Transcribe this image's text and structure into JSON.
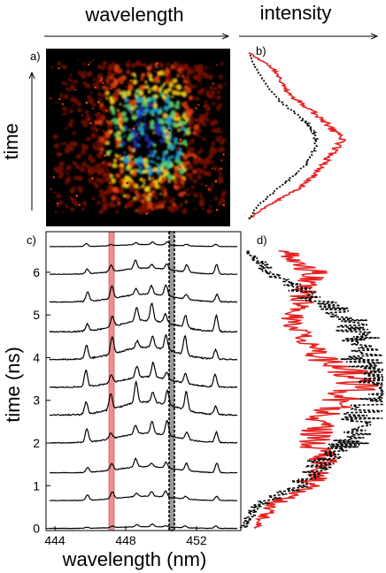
{
  "figure": {
    "top_axis_left_label": "wavelength",
    "top_axis_right_label": "intensity",
    "left_axis_label": "time",
    "panel_labels": [
      "a)",
      "b)",
      "c)",
      "d)"
    ]
  },
  "colors": {
    "red_trace": "#e5211f",
    "black_trace": "#000000",
    "highlight_band": "#f08c8c",
    "image_background": "#000000"
  },
  "chart_data": [
    {
      "panel": "a",
      "type": "heatmap",
      "title": "",
      "xlabel": "wavelength",
      "ylabel": "time",
      "colormap": [
        "#000000",
        "#7a1004",
        "#e8400a",
        "#ffd21a",
        "#5ccf6a",
        "#21a8d6",
        "#1e2fb8"
      ],
      "description_values": "bright spectral streaks concentrated in the middle, faint speckle at edges"
    },
    {
      "panel": "b",
      "type": "line",
      "xlabel": "intensity",
      "ylabel": "time",
      "series": [
        {
          "style": "solid",
          "color": "#e5211f",
          "y": [
            0,
            1,
            2,
            3,
            4,
            5,
            6,
            7,
            8,
            9,
            10,
            11,
            12,
            13,
            14,
            15,
            16,
            17,
            18,
            19,
            20,
            21,
            22,
            23,
            24,
            25,
            26,
            27,
            28,
            29,
            30
          ],
          "values": [
            0.05,
            0.12,
            0.2,
            0.3,
            0.4,
            0.5,
            0.6,
            0.66,
            0.72,
            0.76,
            0.8,
            0.86,
            0.9,
            0.95,
            1.0,
            0.97,
            0.92,
            0.86,
            0.8,
            0.73,
            0.66,
            0.58,
            0.5,
            0.44,
            0.4,
            0.37,
            0.35,
            0.3,
            0.24,
            0.14,
            0.05
          ]
        },
        {
          "style": "dashed",
          "color": "#000000",
          "y": [
            0,
            1,
            2,
            3,
            4,
            5,
            6,
            7,
            8,
            9,
            10,
            11,
            12,
            13,
            14,
            15,
            16,
            17,
            18,
            19,
            20,
            21,
            22,
            23,
            24,
            25,
            26,
            27,
            28,
            29,
            30
          ],
          "values": [
            0.05,
            0.08,
            0.12,
            0.17,
            0.24,
            0.31,
            0.38,
            0.45,
            0.52,
            0.58,
            0.63,
            0.67,
            0.7,
            0.72,
            0.73,
            0.72,
            0.7,
            0.66,
            0.6,
            0.53,
            0.46,
            0.39,
            0.33,
            0.28,
            0.24,
            0.2,
            0.16,
            0.13,
            0.1,
            0.07,
            0.05
          ]
        }
      ]
    },
    {
      "panel": "c",
      "type": "line",
      "title": "",
      "xlabel": "wavelength (nm)",
      "ylabel": "time (ns)",
      "xlim": [
        443.5,
        454.5
      ],
      "ylim": [
        -0.05,
        6.95
      ],
      "x_ticks": [
        444,
        448,
        452
      ],
      "y_ticks": [
        0,
        1,
        2,
        3,
        4,
        5,
        6
      ],
      "highlight_band_x": [
        447.05,
        447.35
      ],
      "dashed_band_x": [
        450.45,
        450.75
      ],
      "trace_offsets_ns": [
        0,
        0.65,
        1.3,
        2.0,
        2.65,
        3.3,
        3.95,
        4.6,
        5.3,
        5.95,
        6.6
      ],
      "trace_peak_heights": [
        0.1,
        0.25,
        0.35,
        0.55,
        0.75,
        0.6,
        0.7,
        0.65,
        0.45,
        0.35,
        0.12
      ],
      "main_peaks_nm": [
        445.8,
        447.2,
        448.6,
        449.5,
        450.3,
        451.4,
        453.1
      ]
    },
    {
      "panel": "d",
      "type": "line",
      "xlabel": "intensity",
      "ylabel": "time (ns)",
      "series": [
        {
          "style": "solid",
          "color": "#e5211f",
          "y": [
            0,
            0.5,
            1,
            1.5,
            2,
            2.5,
            3,
            3.5,
            4,
            4.5,
            5,
            5.5,
            6,
            6.5
          ],
          "values": [
            0.1,
            0.2,
            0.45,
            0.6,
            0.5,
            0.55,
            0.7,
            0.85,
            0.55,
            0.4,
            0.35,
            0.45,
            0.5,
            0.3
          ]
        },
        {
          "style": "dashed",
          "color": "#000000",
          "y": [
            0,
            0.5,
            1,
            1.5,
            2,
            2.5,
            3,
            3.5,
            4,
            4.5,
            5,
            5.5,
            6,
            6.5
          ],
          "values": [
            0.02,
            0.1,
            0.4,
            0.55,
            0.75,
            0.8,
            0.95,
            1.0,
            0.85,
            0.8,
            0.7,
            0.45,
            0.2,
            0.05
          ]
        }
      ]
    }
  ]
}
